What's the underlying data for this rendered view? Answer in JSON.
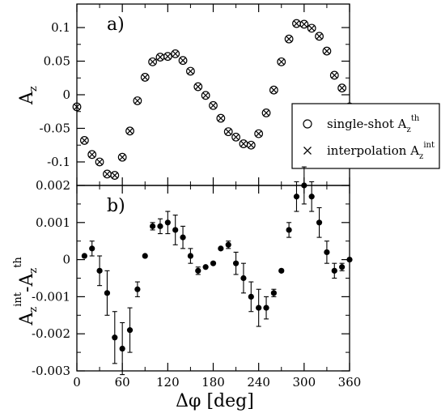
{
  "chart_data": [
    {
      "type": "scatter",
      "panel_label": "a)",
      "ylabel": "A",
      "ylabel_sub": "z",
      "xlim": [
        0,
        360
      ],
      "ylim": [
        -0.135,
        0.135
      ],
      "x_ticks": [
        0,
        60,
        120,
        180,
        240,
        300,
        360
      ],
      "y_ticks": [
        -0.1,
        -0.05,
        0,
        0.05,
        0.1
      ],
      "y_tick_labels": [
        "-0.1",
        "-0.05",
        "0",
        "0.05",
        "0.1"
      ],
      "grid": false,
      "legend_position": "lower-right",
      "x": [
        0,
        10,
        20,
        30,
        40,
        50,
        60,
        70,
        80,
        90,
        100,
        110,
        120,
        130,
        140,
        150,
        160,
        170,
        180,
        190,
        200,
        210,
        220,
        230,
        240,
        250,
        260,
        270,
        280,
        290,
        300,
        310,
        320,
        330,
        340,
        350,
        360
      ],
      "series": [
        {
          "name": "single-shot A",
          "name_sub": "z",
          "name_sup": "th",
          "marker": "circle",
          "values": [
            -0.018,
            -0.068,
            -0.089,
            -0.1,
            -0.118,
            -0.12,
            -0.093,
            -0.054,
            -0.009,
            0.026,
            0.049,
            0.056,
            0.057,
            0.061,
            0.051,
            0.035,
            0.012,
            -0.001,
            -0.016,
            -0.035,
            -0.055,
            -0.063,
            -0.073,
            -0.075,
            -0.058,
            -0.027,
            0.007,
            0.049,
            0.083,
            0.106,
            0.105,
            0.099,
            0.087,
            0.065,
            0.029,
            0.01,
            -0.018
          ]
        },
        {
          "name": "interpolation A",
          "name_sub": "z",
          "name_sup": "int",
          "marker": "x",
          "values": [
            -0.018,
            -0.068,
            -0.089,
            -0.1,
            -0.118,
            -0.12,
            -0.093,
            -0.054,
            -0.009,
            0.026,
            0.049,
            0.056,
            0.057,
            0.061,
            0.051,
            0.035,
            0.012,
            -0.001,
            -0.016,
            -0.035,
            -0.055,
            -0.063,
            -0.073,
            -0.075,
            -0.058,
            -0.027,
            0.007,
            0.049,
            0.083,
            0.106,
            0.105,
            0.099,
            0.087,
            0.065,
            0.029,
            0.01,
            -0.018
          ]
        }
      ]
    },
    {
      "type": "scatter",
      "panel_label": "b)",
      "ylabel": "A",
      "ylabel_parts": [
        {
          "text": "A"
        },
        {
          "text": "z",
          "sub": true
        },
        {
          "text": "int",
          "sup": true
        },
        {
          "text": "-A"
        },
        {
          "text": "z",
          "sub": true
        },
        {
          "text": "th",
          "sup": true
        }
      ],
      "xlabel": "Δφ   [deg]",
      "xlim": [
        0,
        360
      ],
      "ylim": [
        -0.003,
        0.002
      ],
      "x_ticks": [
        0,
        60,
        120,
        180,
        240,
        300,
        360
      ],
      "x_tick_labels": [
        "0",
        "60",
        "120",
        "180",
        "240",
        "300",
        "360"
      ],
      "y_ticks": [
        -0.003,
        -0.002,
        -0.001,
        0,
        0.001,
        0.002
      ],
      "y_tick_labels": [
        "-0.003",
        "-0.002",
        "-0.001",
        "0",
        "0.001",
        "0.002"
      ],
      "grid": false,
      "series": [
        {
          "marker": "filled-circle",
          "x": [
            10,
            20,
            30,
            40,
            50,
            60,
            70,
            80,
            90,
            100,
            110,
            120,
            130,
            140,
            150,
            160,
            170,
            180,
            190,
            200,
            210,
            220,
            230,
            240,
            250,
            260,
            270,
            280,
            290,
            300,
            310,
            320,
            330,
            340,
            350,
            360
          ],
          "values": [
            0.0001,
            0.0003,
            -0.0003,
            -0.0009,
            -0.0021,
            -0.0024,
            -0.0019,
            -0.0008,
            0.0001,
            0.0009,
            0.0009,
            0.001,
            0.0008,
            0.0006,
            0.0001,
            -0.0003,
            -0.0002,
            -0.0001,
            0.0003,
            0.0004,
            -0.0001,
            -0.0005,
            -0.001,
            -0.0013,
            -0.0013,
            -0.0009,
            -0.0003,
            0.0008,
            0.0017,
            0.002,
            0.0017,
            0.001,
            0.0002,
            -0.0003,
            -0.0002,
            0.0
          ],
          "errors": [
            0,
            0.0002,
            0.0004,
            0.0006,
            0.0007,
            0.0007,
            0.0006,
            0.0002,
            0,
            0.0001,
            0.0002,
            0.0003,
            0.0004,
            0.0003,
            0.0002,
            0.0001,
            0,
            0,
            0,
            0.0001,
            0.0003,
            0.0004,
            0.0004,
            0.0005,
            0.0003,
            0.0001,
            0,
            0.0002,
            0.0004,
            0.0005,
            0.0004,
            0.0004,
            0.0003,
            0.0002,
            0.0001,
            0
          ]
        }
      ]
    }
  ]
}
